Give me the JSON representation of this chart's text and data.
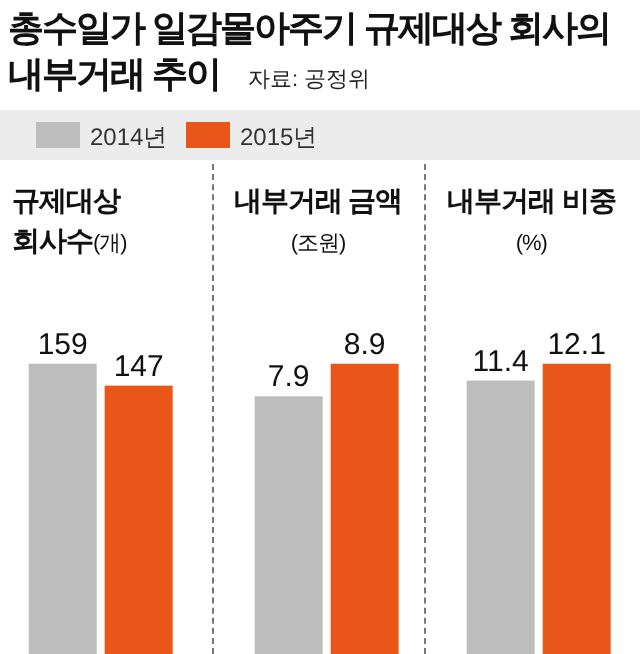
{
  "chart_data": [
    {
      "type": "bar",
      "title": "총수일가 일감몰아주기 규제대상 회사의 내부거래 추이",
      "annotations": [
        "자료: 공정위"
      ],
      "legend": "top",
      "subtitle": "규제대상 회사수(개)",
      "categories": [
        null
      ],
      "data_labels": true,
      "series": [
        {
          "name": "2014년",
          "color": "#bdbdbd",
          "values": [
            159
          ]
        },
        {
          "name": "2015년",
          "color": "#e8561a",
          "values": [
            147
          ]
        }
      ]
    },
    {
      "type": "bar",
      "subtitle": "내부거래 금액",
      "ylabel": "(조원)",
      "categories": [
        null
      ],
      "data_labels": true,
      "series": [
        {
          "color": "#bdbdbd",
          "values": [
            7.9
          ]
        },
        {
          "color": "#e8561a",
          "values": [
            8.9
          ]
        }
      ]
    },
    {
      "type": "bar",
      "subtitle": "내부거래 비중",
      "ylabel": "(%)",
      "categories": [
        null
      ],
      "data_labels": true,
      "series": [
        {
          "color": "#bdbdbd",
          "values": [
            11.4
          ]
        },
        {
          "color": "#e8561a",
          "values": [
            12.1
          ]
        }
      ]
    }
  ]
}
